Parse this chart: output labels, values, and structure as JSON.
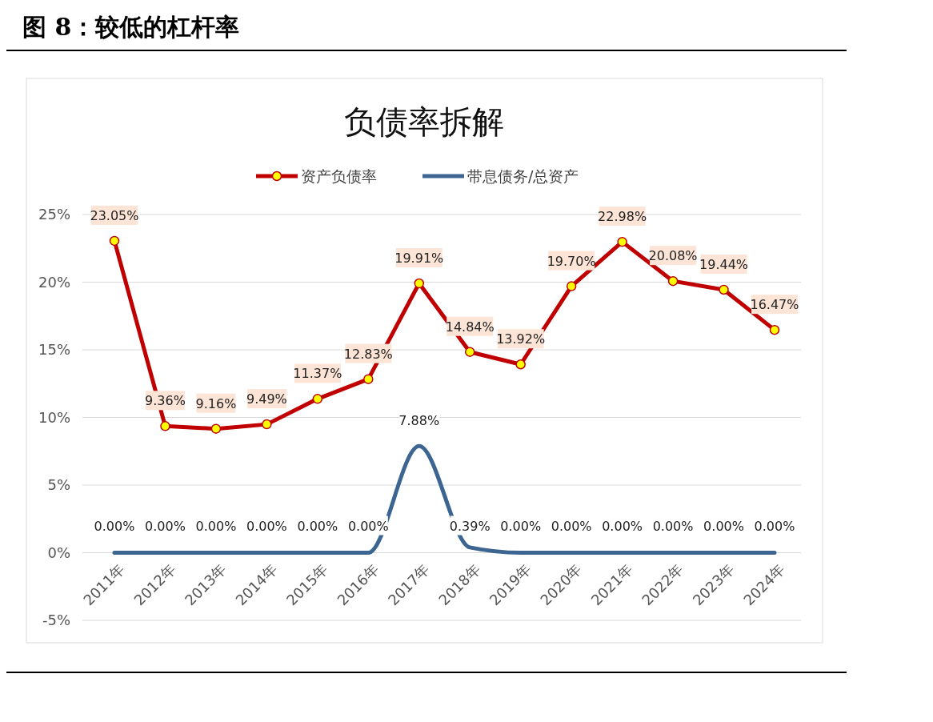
{
  "chart_data": {
    "type": "line",
    "title": "图 8：较低的杠杆率",
    "subtitle": "负债率拆解",
    "categories": [
      "2011年",
      "2012年",
      "2013年",
      "2014年",
      "2015年",
      "2016年",
      "2017年",
      "2018年",
      "2019年",
      "2020年",
      "2021年",
      "2022年",
      "2023年",
      "2024年"
    ],
    "series": [
      {
        "name": "资产负债率",
        "color": "#c00000",
        "marker": "circle",
        "values": [
          23.05,
          9.36,
          9.16,
          9.49,
          11.37,
          12.83,
          19.91,
          14.84,
          13.92,
          19.7,
          22.98,
          20.08,
          19.44,
          16.47
        ],
        "value_labels": [
          "23.05%",
          "9.36%",
          "9.16%",
          "9.49%",
          "11.37%",
          "12.83%",
          "19.91%",
          "14.84%",
          "13.92%",
          "19.70%",
          "22.98%",
          "20.08%",
          "19.44%",
          "16.47%"
        ]
      },
      {
        "name": "带息债务/总资产",
        "color": "#3d6591",
        "marker": "none",
        "values": [
          0,
          0,
          0,
          0,
          0,
          0,
          7.88,
          0.39,
          0,
          0,
          0,
          0,
          0,
          0
        ],
        "value_labels": [
          "0.00%",
          "0.00%",
          "0.00%",
          "0.00%",
          "0.00%",
          "0.00%",
          "7.88%",
          "0.39%",
          "0.00%",
          "0.00%",
          "0.00%",
          "0.00%",
          "0.00%",
          "0.00%"
        ]
      }
    ],
    "ylim": [
      -5,
      25
    ],
    "yticks": [
      {
        "value": -5,
        "label": "-5%"
      },
      {
        "value": 0,
        "label": "0%"
      },
      {
        "value": 5,
        "label": "5%"
      },
      {
        "value": 10,
        "label": "10%"
      },
      {
        "value": 15,
        "label": "15%"
      },
      {
        "value": 20,
        "label": "20%"
      },
      {
        "value": 25,
        "label": "25%"
      }
    ],
    "grid": "y",
    "legend": "top"
  }
}
